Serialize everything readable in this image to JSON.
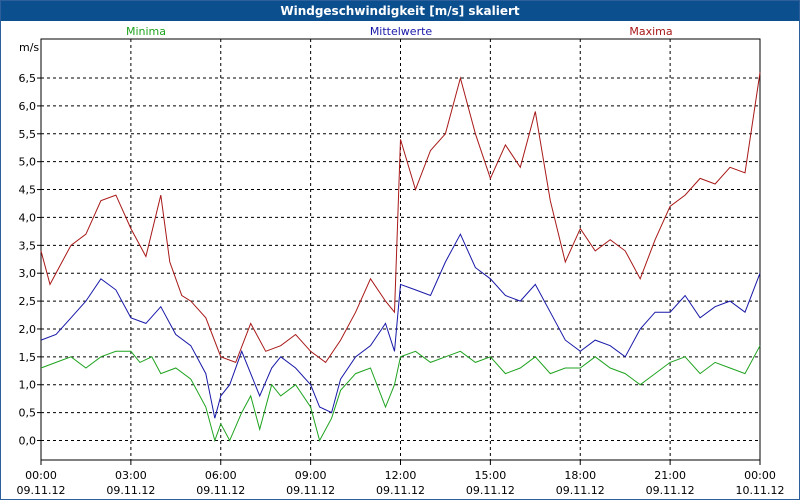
{
  "window": {
    "title": "Windgeschwindigkeit [m/s] skaliert"
  },
  "chart_data": {
    "type": "line",
    "title": "Windgeschwindigkeit [m/s] skaliert",
    "ylabel": "m/s",
    "xlabel": "",
    "ylim": [
      -0.35,
      7.2
    ],
    "xlim_hours": [
      0,
      24
    ],
    "grid": true,
    "y_ticks": [
      0,
      0.5,
      1,
      1.5,
      2,
      2.5,
      3,
      3.5,
      4,
      4.5,
      5,
      5.5,
      6,
      6.5
    ],
    "y_tick_labels": [
      "0,0",
      "0,5",
      "1,0",
      "1,5",
      "2,0",
      "2,5",
      "3,0",
      "3,5",
      "4,0",
      "4,5",
      "5,0",
      "5,5",
      "6,0",
      "6,5"
    ],
    "x_ticks": [
      {
        "hour": 0,
        "time": "00:00",
        "date": "09.11.12"
      },
      {
        "hour": 3,
        "time": "03:00",
        "date": "09.11.12"
      },
      {
        "hour": 6,
        "time": "06:00",
        "date": "09.11.12"
      },
      {
        "hour": 9,
        "time": "09:00",
        "date": "09.11.12"
      },
      {
        "hour": 12,
        "time": "12:00",
        "date": "09.11.12"
      },
      {
        "hour": 15,
        "time": "15:00",
        "date": "09.11.12"
      },
      {
        "hour": 18,
        "time": "18:00",
        "date": "09.11.12"
      },
      {
        "hour": 21,
        "time": "21:00",
        "date": "09.11.12"
      },
      {
        "hour": 24,
        "time": "00:00",
        "date": "10.11.12"
      }
    ],
    "legend_position": "top",
    "series": [
      {
        "name": "Minima",
        "color": "#1fa31f",
        "points": [
          [
            0,
            1.3
          ],
          [
            0.5,
            1.4
          ],
          [
            1,
            1.5
          ],
          [
            1.5,
            1.3
          ],
          [
            2,
            1.5
          ],
          [
            2.5,
            1.6
          ],
          [
            3,
            1.6
          ],
          [
            3.3,
            1.4
          ],
          [
            3.7,
            1.5
          ],
          [
            4,
            1.2
          ],
          [
            4.5,
            1.3
          ],
          [
            5,
            1.1
          ],
          [
            5.5,
            0.6
          ],
          [
            5.8,
            0.0
          ],
          [
            6,
            0.3
          ],
          [
            6.3,
            0.0
          ],
          [
            6.7,
            0.5
          ],
          [
            7,
            0.8
          ],
          [
            7.3,
            0.2
          ],
          [
            7.7,
            1.0
          ],
          [
            8,
            0.8
          ],
          [
            8.5,
            1.0
          ],
          [
            9,
            0.6
          ],
          [
            9.3,
            0.0
          ],
          [
            9.7,
            0.4
          ],
          [
            10,
            0.9
          ],
          [
            10.5,
            1.2
          ],
          [
            11,
            1.3
          ],
          [
            11.5,
            0.6
          ],
          [
            11.8,
            1.0
          ],
          [
            12,
            1.5
          ],
          [
            12.5,
            1.6
          ],
          [
            13,
            1.4
          ],
          [
            13.5,
            1.5
          ],
          [
            14,
            1.6
          ],
          [
            14.5,
            1.4
          ],
          [
            15,
            1.5
          ],
          [
            15.5,
            1.2
          ],
          [
            16,
            1.3
          ],
          [
            16.5,
            1.5
          ],
          [
            17,
            1.2
          ],
          [
            17.5,
            1.3
          ],
          [
            18,
            1.3
          ],
          [
            18.5,
            1.5
          ],
          [
            19,
            1.3
          ],
          [
            19.5,
            1.2
          ],
          [
            20,
            1.0
          ],
          [
            20.5,
            1.2
          ],
          [
            21,
            1.4
          ],
          [
            21.5,
            1.5
          ],
          [
            22,
            1.2
          ],
          [
            22.5,
            1.4
          ],
          [
            23,
            1.3
          ],
          [
            23.5,
            1.2
          ],
          [
            24,
            1.7
          ]
        ]
      },
      {
        "name": "Mittelwerte",
        "color": "#1818a8",
        "points": [
          [
            0,
            1.8
          ],
          [
            0.5,
            1.9
          ],
          [
            1,
            2.2
          ],
          [
            1.5,
            2.5
          ],
          [
            2,
            2.9
          ],
          [
            2.5,
            2.7
          ],
          [
            3,
            2.2
          ],
          [
            3.5,
            2.1
          ],
          [
            4,
            2.4
          ],
          [
            4.5,
            1.9
          ],
          [
            5,
            1.7
          ],
          [
            5.5,
            1.2
          ],
          [
            5.8,
            0.4
          ],
          [
            6,
            0.8
          ],
          [
            6.3,
            1.0
          ],
          [
            6.7,
            1.6
          ],
          [
            7,
            1.2
          ],
          [
            7.3,
            0.8
          ],
          [
            7.7,
            1.3
          ],
          [
            8,
            1.5
          ],
          [
            8.5,
            1.3
          ],
          [
            9,
            1.0
          ],
          [
            9.3,
            0.6
          ],
          [
            9.7,
            0.5
          ],
          [
            10,
            1.1
          ],
          [
            10.5,
            1.5
          ],
          [
            11,
            1.7
          ],
          [
            11.5,
            2.1
          ],
          [
            11.8,
            1.6
          ],
          [
            12,
            2.8
          ],
          [
            12.5,
            2.7
          ],
          [
            13,
            2.6
          ],
          [
            13.5,
            3.2
          ],
          [
            14,
            3.7
          ],
          [
            14.5,
            3.1
          ],
          [
            15,
            2.9
          ],
          [
            15.5,
            2.6
          ],
          [
            16,
            2.5
          ],
          [
            16.5,
            2.8
          ],
          [
            17,
            2.3
          ],
          [
            17.5,
            1.8
          ],
          [
            18,
            1.6
          ],
          [
            18.5,
            1.8
          ],
          [
            19,
            1.7
          ],
          [
            19.5,
            1.5
          ],
          [
            20,
            2.0
          ],
          [
            20.5,
            2.3
          ],
          [
            21,
            2.3
          ],
          [
            21.5,
            2.6
          ],
          [
            22,
            2.2
          ],
          [
            22.5,
            2.4
          ],
          [
            23,
            2.5
          ],
          [
            23.5,
            2.3
          ],
          [
            24,
            3.0
          ]
        ]
      },
      {
        "name": "Maxima",
        "color": "#a81818",
        "points": [
          [
            0,
            3.4
          ],
          [
            0.3,
            2.8
          ],
          [
            0.7,
            3.2
          ],
          [
            1,
            3.5
          ],
          [
            1.5,
            3.7
          ],
          [
            2,
            4.3
          ],
          [
            2.5,
            4.4
          ],
          [
            3,
            3.8
          ],
          [
            3.5,
            3.3
          ],
          [
            4,
            4.4
          ],
          [
            4.3,
            3.2
          ],
          [
            4.7,
            2.6
          ],
          [
            5,
            2.5
          ],
          [
            5.5,
            2.2
          ],
          [
            6,
            1.5
          ],
          [
            6.5,
            1.4
          ],
          [
            7,
            2.1
          ],
          [
            7.5,
            1.6
          ],
          [
            8,
            1.7
          ],
          [
            8.5,
            1.9
          ],
          [
            9,
            1.6
          ],
          [
            9.5,
            1.4
          ],
          [
            10,
            1.8
          ],
          [
            10.5,
            2.3
          ],
          [
            11,
            2.9
          ],
          [
            11.5,
            2.5
          ],
          [
            11.8,
            2.3
          ],
          [
            12,
            5.4
          ],
          [
            12.5,
            4.5
          ],
          [
            13,
            5.2
          ],
          [
            13.5,
            5.5
          ],
          [
            14,
            6.5
          ],
          [
            14.5,
            5.5
          ],
          [
            15,
            4.7
          ],
          [
            15.5,
            5.3
          ],
          [
            16,
            4.9
          ],
          [
            16.5,
            5.9
          ],
          [
            17,
            4.3
          ],
          [
            17.5,
            3.2
          ],
          [
            18,
            3.8
          ],
          [
            18.5,
            3.4
          ],
          [
            19,
            3.6
          ],
          [
            19.5,
            3.4
          ],
          [
            20,
            2.9
          ],
          [
            20.5,
            3.6
          ],
          [
            21,
            4.2
          ],
          [
            21.5,
            4.4
          ],
          [
            22,
            4.7
          ],
          [
            22.5,
            4.6
          ],
          [
            23,
            4.9
          ],
          [
            23.5,
            4.8
          ],
          [
            24,
            6.6
          ]
        ]
      }
    ]
  }
}
